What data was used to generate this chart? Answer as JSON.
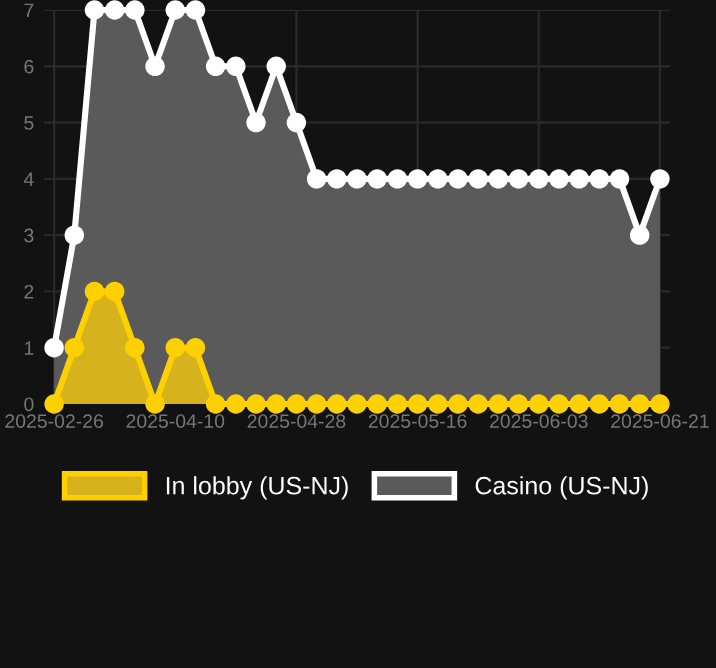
{
  "chart_data": {
    "type": "area",
    "categories": [
      "2025-02-26",
      null,
      null,
      null,
      null,
      null,
      "2025-04-10",
      null,
      null,
      null,
      null,
      null,
      "2025-04-28",
      null,
      null,
      null,
      null,
      null,
      "2025-05-16",
      null,
      null,
      null,
      null,
      null,
      "2025-06-03",
      null,
      null,
      null,
      null,
      null,
      "2025-06-21"
    ],
    "series": [
      {
        "name": "Casino (US-NJ)",
        "color": "#ffffff",
        "values": [
          1,
          3,
          7,
          7,
          7,
          6,
          7,
          7,
          6,
          6,
          5,
          6,
          5,
          4,
          4,
          4,
          4,
          4,
          4,
          4,
          4,
          4,
          4,
          4,
          4,
          4,
          4,
          4,
          4,
          3,
          4
        ]
      },
      {
        "name": "In lobby (US-NJ)",
        "color": "#ffd000",
        "values": [
          0,
          1,
          2,
          2,
          1,
          0,
          1,
          1,
          0,
          0,
          0,
          0,
          0,
          0,
          0,
          0,
          0,
          0,
          0,
          0,
          0,
          0,
          0,
          0,
          0,
          0,
          0,
          0,
          0,
          0,
          0
        ]
      }
    ],
    "ylim": [
      0,
      7
    ],
    "yticks": [
      0,
      1,
      2,
      3,
      4,
      5,
      6,
      7
    ],
    "grid": true,
    "legend": "bottom",
    "marker": "circle"
  }
}
